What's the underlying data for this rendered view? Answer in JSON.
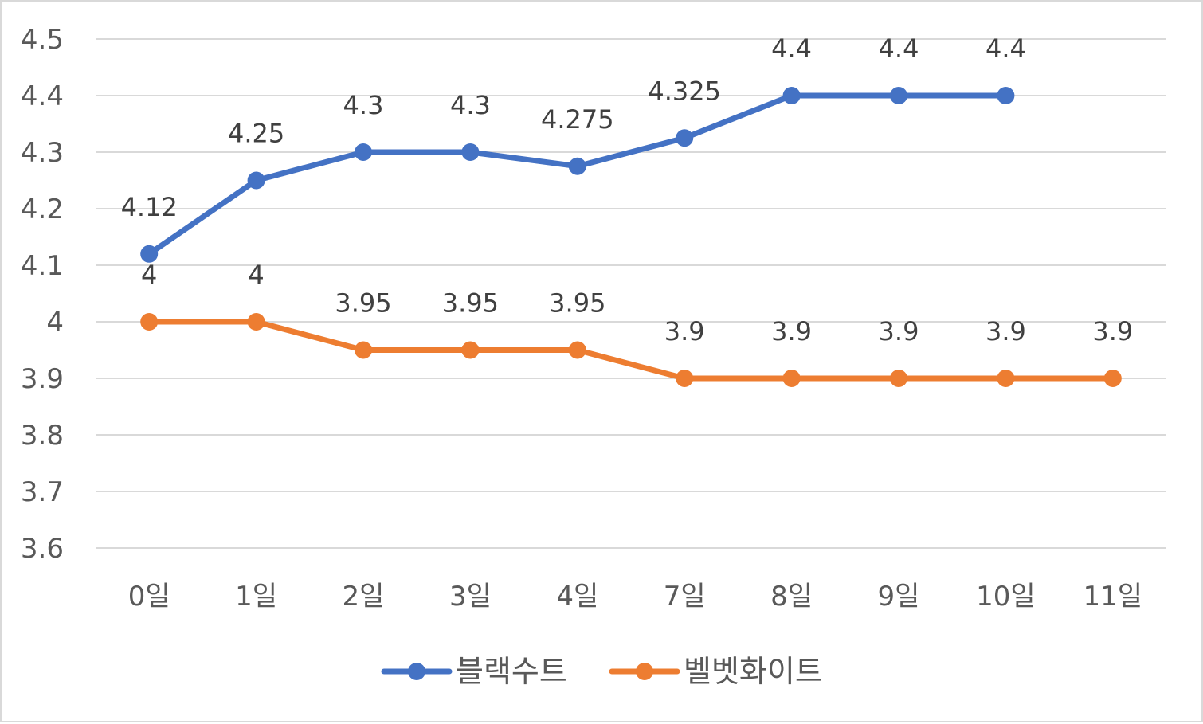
{
  "chart_data": {
    "type": "line",
    "categories": [
      "0일",
      "1일",
      "2일",
      "3일",
      "4일",
      "7일",
      "8일",
      "9일",
      "10일",
      "11일"
    ],
    "series": [
      {
        "name": "블랙수트",
        "color": "#4472C4",
        "values": [
          4.12,
          4.25,
          4.3,
          4.3,
          4.275,
          4.325,
          4.4,
          4.4,
          4.4,
          null
        ],
        "labels": [
          "4.12",
          "4.25",
          "4.3",
          "4.3",
          "4.275",
          "4.325",
          "4.4",
          "4.4",
          "4.4",
          null
        ]
      },
      {
        "name": "벨벳화이트",
        "color": "#ED7D31",
        "values": [
          4,
          4,
          3.95,
          3.95,
          3.95,
          3.9,
          3.9,
          3.9,
          3.9,
          3.9
        ],
        "labels": [
          "4",
          "4",
          "3.95",
          "3.95",
          "3.95",
          "3.9",
          "3.9",
          "3.9",
          "3.9",
          "3.9"
        ]
      }
    ],
    "ylim": [
      3.6,
      4.5
    ],
    "yticks": [
      "3.6",
      "3.7",
      "3.8",
      "3.9",
      "4",
      "4.1",
      "4.2",
      "4.3",
      "4.4",
      "4.5"
    ],
    "grid": true,
    "legend": "bottom",
    "title": "",
    "xlabel": "",
    "ylabel": ""
  }
}
